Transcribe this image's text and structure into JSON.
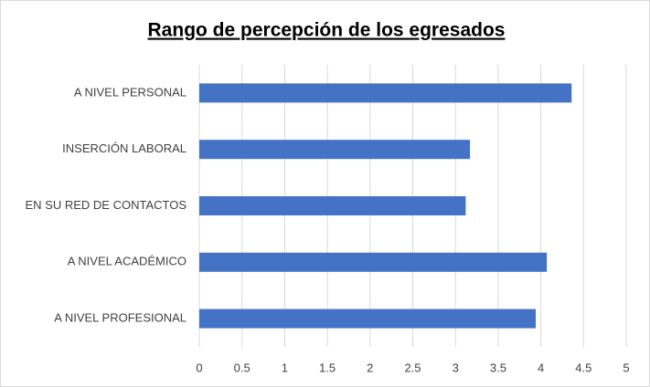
{
  "chart_data": {
    "type": "bar",
    "orientation": "horizontal",
    "title": "Rango de percepción de los egresados",
    "categories": [
      "A NIVEL PERSONAL",
      "INSERCIÓN LABORAL",
      "EN SU RED DE CONTACTOS",
      "A NIVEL ACADÉMICO",
      "A NIVEL PROFESIONAL"
    ],
    "values": [
      4.36,
      3.17,
      3.12,
      4.07,
      3.94
    ],
    "color": "#4472c4",
    "xlim": [
      0,
      5
    ],
    "xticks": [
      0,
      0.5,
      1,
      1.5,
      2,
      2.5,
      3,
      3.5,
      4,
      4.5,
      5
    ],
    "grid": true
  }
}
